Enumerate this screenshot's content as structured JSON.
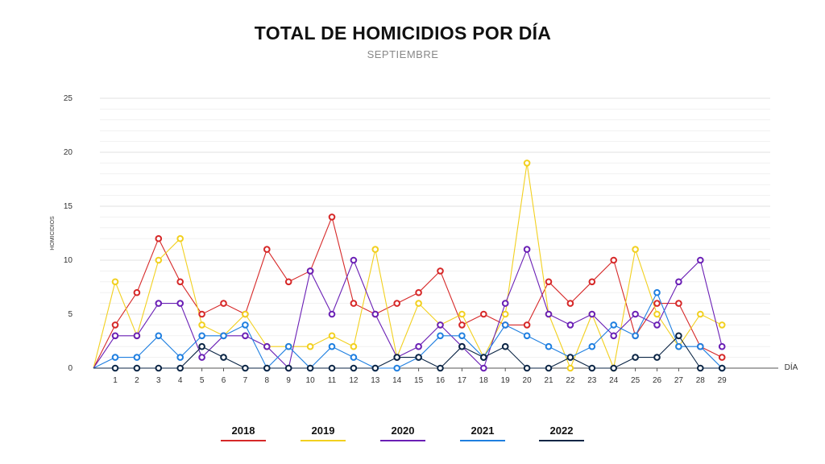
{
  "title": "TOTAL DE HOMICIDIOS POR DÍA",
  "subtitle": "SEPTIEMBRE",
  "chart_data": {
    "type": "line",
    "title": "TOTAL DE HOMICIDIOS POR DÍA",
    "subtitle": "SEPTIEMBRE",
    "xlabel": "DÍA",
    "ylabel": "HOMICIDIOS",
    "ylim": [
      0,
      25
    ],
    "yticks": [
      0,
      5,
      10,
      15,
      20,
      25
    ],
    "x": [
      1,
      2,
      3,
      4,
      5,
      6,
      7,
      8,
      9,
      10,
      11,
      12,
      13,
      14,
      15,
      16,
      17,
      18,
      19,
      20,
      21,
      22,
      23,
      24,
      25,
      26,
      27,
      28,
      29
    ],
    "grid": true,
    "legend_position": "bottom",
    "series": [
      {
        "name": "2018",
        "color": "#d62828",
        "values": [
          4,
          7,
          12,
          8,
          5,
          6,
          5,
          11,
          8,
          9,
          14,
          6,
          5,
          6,
          7,
          9,
          4,
          5,
          4,
          4,
          8,
          6,
          8,
          10,
          3,
          6,
          6,
          2,
          1
        ]
      },
      {
        "name": "2019",
        "color": "#f2d01f",
        "values": [
          8,
          3,
          10,
          12,
          4,
          3,
          5,
          2,
          2,
          2,
          3,
          2,
          11,
          1,
          6,
          4,
          5,
          1,
          5,
          19,
          5,
          0,
          5,
          0,
          11,
          5,
          2,
          5,
          4
        ]
      },
      {
        "name": "2020",
        "color": "#6a1fb5",
        "values": [
          3,
          3,
          6,
          6,
          1,
          3,
          3,
          2,
          0,
          9,
          5,
          10,
          5,
          1,
          2,
          4,
          2,
          0,
          6,
          11,
          5,
          4,
          5,
          3,
          5,
          4,
          8,
          10,
          2
        ]
      },
      {
        "name": "2021",
        "color": "#1f7fe0",
        "values": [
          1,
          1,
          3,
          1,
          3,
          3,
          4,
          0,
          2,
          0,
          2,
          1,
          0,
          0,
          1,
          3,
          3,
          1,
          4,
          3,
          2,
          1,
          2,
          4,
          3,
          7,
          2,
          2,
          0
        ]
      },
      {
        "name": "2022",
        "color": "#0b2545",
        "values": [
          0,
          0,
          0,
          0,
          2,
          1,
          0,
          0,
          0,
          0,
          0,
          0,
          0,
          1,
          1,
          0,
          2,
          1,
          2,
          0,
          0,
          1,
          0,
          0,
          1,
          1,
          3,
          0,
          0
        ]
      }
    ]
  }
}
